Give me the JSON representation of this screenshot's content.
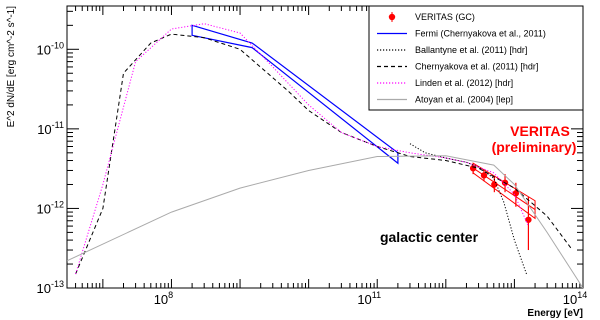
{
  "chart_data": {
    "type": "scatter",
    "title": "",
    "xlabel": "Energy [eV]",
    "ylabel": "E^2 dN/dE [erg cm^-2 s^-1]",
    "x_scale": "log",
    "y_scale": "log",
    "xlim": [
      3000000.0,
      100000000000000.0
    ],
    "ylim": [
      1e-13,
      3.5e-10
    ],
    "x_tick_labels": [
      {
        "value": 100000000.0,
        "base": "10",
        "exp": "8"
      },
      {
        "value": 100000000000.0,
        "base": "10",
        "exp": "11"
      },
      {
        "value": 100000000000000.0,
        "base": "10",
        "exp": "14"
      }
    ],
    "y_tick_labels": [
      {
        "value": 1e-13,
        "base": "10",
        "exp": "-13"
      },
      {
        "value": 1e-12,
        "base": "10",
        "exp": "-12"
      },
      {
        "value": 1e-11,
        "base": "10",
        "exp": "-11"
      },
      {
        "value": 1e-10,
        "base": "10",
        "exp": "-10"
      }
    ],
    "legend_position": "top-right",
    "legend": [
      {
        "label": "VERITAS (GC)",
        "style": "marker",
        "color": "#ff0000"
      },
      {
        "label": "Fermi (Chernyakova et al., 2011)",
        "style": "solid",
        "color": "#0000ff"
      },
      {
        "label": "Ballantyne et al. (2011) [hdr]",
        "style": "dotted",
        "color": "#000000"
      },
      {
        "label": "Chernyakova et al. (2011) [hdr]",
        "style": "dashed",
        "color": "#000000"
      },
      {
        "label": "Linden et al. (2012) [hdr]",
        "style": "dotted",
        "color": "#ff00ff"
      },
      {
        "label": "Atoyan et al. (2004) [lep]",
        "style": "solid",
        "color": "#aaaaaa"
      }
    ],
    "annotations": [
      {
        "text": "VERITAS",
        "color": "#ff0000"
      },
      {
        "text": "(preliminary)",
        "color": "#ff0000"
      },
      {
        "text": "galactic center",
        "color": "#000000"
      }
    ],
    "series": [
      {
        "name": "VERITAS (GC)",
        "kind": "points",
        "color": "#ff0000",
        "x": [
          2500000000000.0,
          3600000000000.0,
          5100000000000.0,
          7300000000000.0,
          10500000000000.0,
          16000000000000.0
        ],
        "y": [
          3.2e-12,
          2.6e-12,
          2e-12,
          2.1e-12,
          1.55e-12,
          7.2e-13
        ],
        "y_low": [
          2.7e-12,
          2.2e-12,
          1.6e-12,
          1.6e-12,
          1.05e-12,
          3e-13
        ],
        "y_high": [
          3.7e-12,
          3e-12,
          2.5e-12,
          2.7e-12,
          2.1e-12,
          1.4e-12
        ]
      },
      {
        "name": "VERITAS (GC) fit band",
        "kind": "band",
        "color": "#ff0000",
        "x": [
          2500000000000.0,
          20000000000000.0
        ],
        "y_upper": [
          3.7e-12,
          1.25e-12
        ],
        "y_lower": [
          2.8e-12,
          7.5e-13
        ]
      },
      {
        "name": "Fermi (Chernyakova et al., 2011)",
        "kind": "bowtie",
        "color": "#0000ff",
        "x": [
          200000000.0,
          1500000000.0,
          200000000000.0
        ],
        "y_upper": [
          2e-10,
          1.2e-10,
          5e-12
        ],
        "y_lower": [
          1.5e-10,
          1.05e-10,
          3.7e-12
        ]
      },
      {
        "name": "Ballantyne et al. (2011) [hdr]",
        "kind": "line",
        "style": "dotted",
        "color": "#000000",
        "x": [
          300000000000.0,
          500000000000.0,
          1000000000000.0,
          2000000000000.0,
          3000000000000.0,
          5000000000000.0,
          7000000000000.0,
          10000000000000.0,
          15000000000000.0
        ],
        "y": [
          6.5e-12,
          5e-12,
          4.3e-12,
          3.8e-12,
          3.3e-12,
          2.4e-12,
          1.2e-12,
          4e-13,
          1.5e-13
        ]
      },
      {
        "name": "Chernyakova et al. (2011) [hdr]",
        "kind": "line",
        "style": "dashed",
        "color": "#000000",
        "x": [
          4000000.0,
          10000000.0,
          20000000.0,
          50000000.0,
          100000000.0,
          300000000.0,
          1000000000.0,
          5000000000.0,
          10000000000.0,
          30000000000.0,
          100000000000.0,
          300000000000.0,
          1000000000000.0,
          3000000000000.0,
          10000000000000.0,
          30000000000000.0,
          70000000000000.0
        ],
        "y": [
          1.5e-13,
          1e-12,
          5e-11,
          1.2e-10,
          1.55e-10,
          1.4e-10,
          1e-10,
          3e-11,
          1.7e-11,
          9e-12,
          6e-12,
          4.5e-12,
          4e-12,
          3.2e-12,
          1.8e-12,
          8e-13,
          3e-13
        ]
      },
      {
        "name": "Linden et al. (2012) [hdr]",
        "kind": "line",
        "style": "dotted",
        "color": "#ff00ff",
        "x": [
          4000000.0,
          10000000.0,
          30000000.0,
          100000000.0,
          300000000.0,
          1000000000.0,
          3000000000.0,
          10000000000.0,
          30000000000.0,
          100000000000.0,
          300000000000.0,
          1000000000000.0,
          2000000000000.0,
          5000000000000.0,
          10000000000000.0,
          16000000000000.0
        ],
        "y": [
          1.5e-13,
          2e-12,
          7e-11,
          1.8e-10,
          2.1e-10,
          1.6e-10,
          6e-11,
          2e-11,
          9e-12,
          6e-12,
          5e-12,
          4.3e-12,
          3.8e-12,
          2.8e-12,
          1.5e-12,
          6e-13
        ]
      },
      {
        "name": "Atoyan et al. (2004) [lep]",
        "kind": "line",
        "style": "solid",
        "color": "#aaaaaa",
        "x": [
          3000000.0,
          100000000.0,
          1000000000.0,
          10000000000.0,
          100000000000.0,
          1000000000000.0,
          5000000000000.0,
          10000000000000.0,
          30000000000000.0,
          100000000000000.0
        ],
        "y": [
          2.2e-13,
          9e-13,
          1.8e-12,
          3e-12,
          4.5e-12,
          4.6e-12,
          3.5e-12,
          2e-12,
          5e-13,
          1e-13
        ]
      }
    ]
  }
}
